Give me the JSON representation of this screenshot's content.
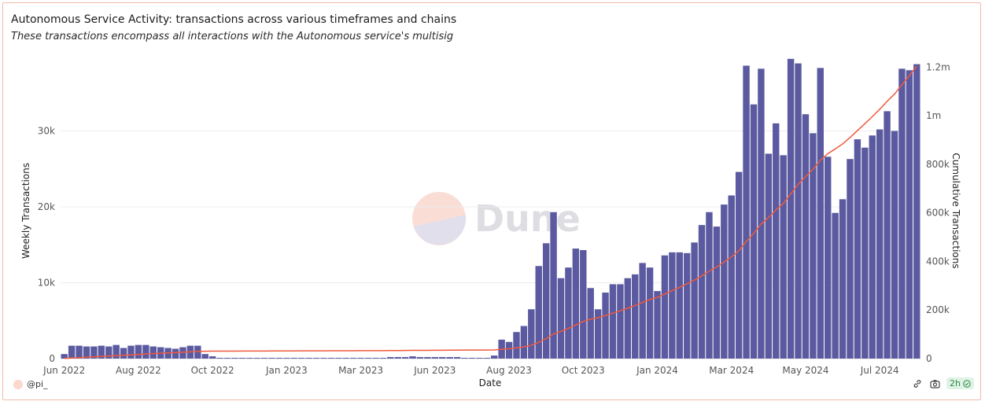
{
  "title": "Autonomous Service Activity: transactions across various timeframes and chains",
  "subtitle": "These transactions encompass all interactions with the Autonomous service's multisig",
  "watermark": "Dune",
  "footer": {
    "author": "@pi_",
    "refresh_badge": "2h"
  },
  "colors": {
    "bar": "#5b5aa0",
    "line": "#f0593d",
    "frame": "#f0b9a9"
  },
  "chart_data": {
    "type": "bar",
    "xlabel": "Date",
    "ylabel_left": "Weekly Transactions",
    "ylabel_right": "Cumulative Transactions",
    "left_ticks": [
      {
        "v": 0,
        "label": "0"
      },
      {
        "v": 10000,
        "label": "10k"
      },
      {
        "v": 20000,
        "label": "20k"
      },
      {
        "v": 30000,
        "label": "30k"
      }
    ],
    "right_ticks": [
      {
        "v": 0,
        "label": "0"
      },
      {
        "v": 200000,
        "label": "200k"
      },
      {
        "v": 400000,
        "label": "400k"
      },
      {
        "v": 600000,
        "label": "600k"
      },
      {
        "v": 800000,
        "label": "800k"
      },
      {
        "v": 1000000,
        "label": "1m"
      },
      {
        "v": 1200000,
        "label": "1.2m"
      }
    ],
    "x_tick_labels": [
      {
        "index": 0,
        "label": "Jun 2022"
      },
      {
        "index": 10,
        "label": "Aug 2022"
      },
      {
        "index": 20,
        "label": "Oct 2022"
      },
      {
        "index": 30,
        "label": "Jan 2023"
      },
      {
        "index": 40,
        "label": "Mar 2023"
      },
      {
        "index": 50,
        "label": "Jun 2023"
      },
      {
        "index": 60,
        "label": "Aug 2023"
      },
      {
        "index": 70,
        "label": "Oct 2023"
      },
      {
        "index": 80,
        "label": "Jan 2024"
      },
      {
        "index": 90,
        "label": "Mar 2024"
      },
      {
        "index": 100,
        "label": "May 2024"
      },
      {
        "index": 110,
        "label": "Jul 2024"
      }
    ],
    "ylim_left": [
      0,
      40000
    ],
    "ylim_right": [
      0,
      1250000
    ],
    "grid": true,
    "series": [
      {
        "name": "Weekly Transactions",
        "type": "bar",
        "values": [
          600,
          1700,
          1700,
          1600,
          1600,
          1700,
          1600,
          1800,
          1400,
          1700,
          1800,
          1800,
          1600,
          1500,
          1400,
          1300,
          1500,
          1700,
          1700,
          600,
          300,
          100,
          100,
          100,
          100,
          100,
          100,
          100,
          100,
          100,
          100,
          100,
          100,
          100,
          100,
          100,
          100,
          100,
          100,
          100,
          100,
          100,
          100,
          100,
          200,
          200,
          200,
          300,
          200,
          200,
          200,
          200,
          200,
          200,
          100,
          100,
          100,
          100,
          400,
          2500,
          2200,
          3500,
          4300,
          6500,
          12200,
          15200,
          19300,
          10600,
          12000,
          14500,
          14300,
          9300,
          6500,
          8700,
          9800,
          9800,
          10600,
          11100,
          12600,
          12000,
          8900,
          13600,
          14000,
          14000,
          13900,
          15300,
          17600,
          19300,
          17400,
          20300,
          21500,
          24600,
          38600,
          33500,
          38200,
          27000,
          31000,
          26800,
          39500,
          38900,
          32200,
          29700,
          38300,
          26600,
          19200,
          21000,
          26300,
          28900,
          27800,
          29400,
          30200,
          32600,
          30000,
          38200,
          38000,
          38800
        ]
      },
      {
        "name": "Cumulative Transactions",
        "type": "line",
        "values": [
          600,
          2300,
          4000,
          5600,
          7200,
          8900,
          10500,
          12300,
          13700,
          15400,
          17200,
          19000,
          20600,
          22100,
          23500,
          24800,
          26300,
          28000,
          29700,
          30300,
          30600,
          30700,
          30800,
          30900,
          31000,
          31100,
          31200,
          31300,
          31400,
          31500,
          31600,
          31700,
          31800,
          31900,
          32000,
          32100,
          32200,
          32300,
          32400,
          32500,
          32600,
          32700,
          32800,
          32900,
          33100,
          33300,
          33500,
          33800,
          34000,
          34200,
          34400,
          34600,
          34800,
          35000,
          35100,
          35200,
          35300,
          35400,
          35800,
          38300,
          40500,
          44000,
          48300,
          54800,
          67000,
          82200,
          101500,
          112100,
          124100,
          138600,
          152900,
          162200,
          168700,
          177400,
          187200,
          197000,
          207600,
          218700,
          231300,
          243300,
          252200,
          265800,
          279800,
          293800,
          307700,
          323000,
          340600,
          359900,
          377300,
          397600,
          419100,
          443700,
          482300,
          515800,
          554000,
          581000,
          612000,
          638800,
          678300,
          717200,
          749400,
          779100,
          817400,
          844000,
          863200,
          884200,
          910500,
          939400,
          967200,
          996600,
          1026800,
          1059400,
          1089400,
          1127600,
          1165600,
          1204400
        ]
      }
    ]
  }
}
